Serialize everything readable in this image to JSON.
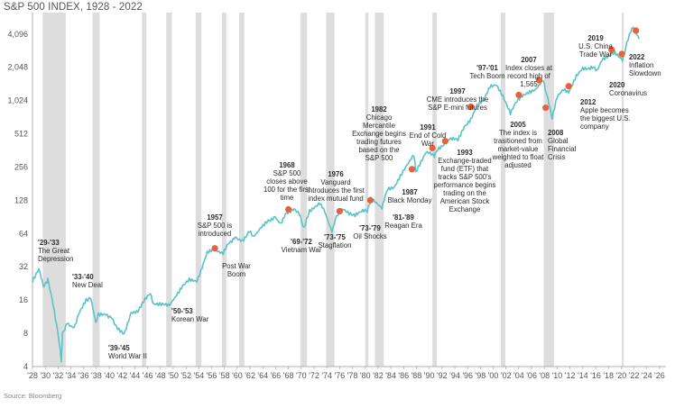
{
  "title": "S&P 500 INDEX, 1928 - 2022",
  "source": "Source: Bloomberg",
  "colors": {
    "line": "#5bc2c8",
    "marker": "#e8603c",
    "recession": "#dddddd",
    "text": "#333333",
    "axis": "#999999"
  },
  "chart_data": {
    "type": "line",
    "title": "S&P 500 INDEX, 1928 - 2022",
    "xlabel": "",
    "ylabel": "",
    "y_scale": "log2",
    "xlim": [
      1928,
      2027
    ],
    "ylim": [
      4,
      6400
    ],
    "y_ticks": [
      4,
      8,
      16,
      32,
      64,
      128,
      256,
      512,
      1024,
      2048,
      4096
    ],
    "y_tick_labels": [
      "4",
      "8",
      "16",
      "32",
      "64",
      "128",
      "256",
      "512",
      "1,024",
      "2,048",
      "4,096"
    ],
    "x_ticks": [
      1928,
      1930,
      1932,
      1934,
      1936,
      1938,
      1940,
      1942,
      1944,
      1946,
      1948,
      1950,
      1952,
      1954,
      1956,
      1958,
      1960,
      1962,
      1964,
      1966,
      1968,
      1970,
      1972,
      1974,
      1976,
      1978,
      1980,
      1982,
      1984,
      1986,
      1988,
      1990,
      1992,
      1994,
      1996,
      1998,
      2000,
      2002,
      2004,
      2006,
      2008,
      2010,
      2012,
      2014,
      2016,
      2018,
      2020,
      2022,
      2024,
      2026
    ],
    "x_tick_labels": [
      "'28",
      "'30",
      "'32",
      "'34",
      "'36",
      "'38",
      "'40",
      "'42",
      "'44",
      "'46",
      "'48",
      "'50",
      "'52",
      "'54",
      "'56",
      "'58",
      "'60",
      "'62",
      "'64",
      "'66",
      "'68",
      "'70",
      "'72",
      "'74",
      "'76",
      "'78",
      "'80",
      "'82",
      "'84",
      "'86",
      "'88",
      "'90",
      "'92",
      "'94",
      "'96",
      "'98",
      "'00",
      "'02",
      "'04",
      "'06",
      "'08",
      "'10",
      "'12",
      "'14",
      "'16",
      "'18",
      "'20",
      "'22",
      "'24",
      "'26"
    ],
    "recessions": [
      [
        1929.6,
        1933.2
      ],
      [
        1937.4,
        1938.5
      ],
      [
        1945.1,
        1945.8
      ],
      [
        1948.9,
        1949.8
      ],
      [
        1953.5,
        1954.4
      ],
      [
        1957.6,
        1958.3
      ],
      [
        1960.3,
        1961.1
      ],
      [
        1969.9,
        1970.9
      ],
      [
        1973.9,
        1975.2
      ],
      [
        1980.0,
        1980.5
      ],
      [
        1981.5,
        1982.9
      ],
      [
        1990.5,
        1991.2
      ],
      [
        2001.2,
        2001.9
      ],
      [
        2007.9,
        2009.5
      ],
      [
        2020.1,
        2020.4
      ]
    ],
    "series": [
      {
        "x": [
          1928,
          1929.0,
          1929.7,
          1930.4,
          1931.2,
          1932.0,
          1932.5,
          1932.7,
          1933.4,
          1934.5,
          1935.2,
          1936.4,
          1937.1,
          1937.9,
          1938.3,
          1939.5,
          1940.4,
          1941.3,
          1942.3,
          1943.4,
          1944.5,
          1945.6,
          1946.4,
          1946.9,
          1947.5,
          1948.5,
          1949.4,
          1950.5,
          1951.5,
          1952.5,
          1953.7,
          1954.5,
          1955.3,
          1956.5,
          1957.8,
          1958.6,
          1959.7,
          1960.8,
          1961.9,
          1962.5,
          1963.6,
          1964.8,
          1965.9,
          1966.8,
          1967.5,
          1968.9,
          1969.7,
          1970.4,
          1971.3,
          1972.9,
          1973.5,
          1974.8,
          1975.5,
          1976.5,
          1977.5,
          1978.4,
          1979.6,
          1980.3,
          1980.9,
          1982.6,
          1983.5,
          1984.5,
          1985.5,
          1987.6,
          1987.9,
          1989.5,
          1990.8,
          1991.5,
          1993.0,
          1994.5,
          1995.5,
          1996.5,
          1997.5,
          1998.5,
          1999.5,
          2000.5,
          2001.5,
          2002.7,
          2003.5,
          2004.5,
          2005.5,
          2006.5,
          2007.8,
          2008.5,
          2009.2,
          2010.0,
          2011.0,
          2011.8,
          2013.0,
          2014.0,
          2015.5,
          2016.2,
          2017.0,
          2018.0,
          2019.0,
          2020.2,
          2020.9,
          2021.5,
          2022.0,
          2022.8
        ],
        "y": [
          24,
          31,
          21,
          25,
          15,
          8,
          4.5,
          8,
          10,
          9,
          12,
          16,
          17,
          10,
          12,
          12,
          11,
          9,
          8,
          12,
          13,
          16,
          18,
          15,
          15,
          15,
          14,
          18,
          22,
          25,
          24,
          32,
          44,
          47,
          42,
          52,
          60,
          55,
          68,
          60,
          72,
          84,
          90,
          80,
          95,
          105,
          95,
          72,
          100,
          118,
          105,
          68,
          90,
          105,
          95,
          96,
          105,
          100,
          130,
          110,
          160,
          165,
          210,
          330,
          230,
          350,
          320,
          380,
          450,
          460,
          600,
          700,
          950,
          1050,
          1400,
          1450,
          1150,
          800,
          1000,
          1150,
          1230,
          1300,
          1550,
          1100,
          700,
          1100,
          1280,
          1200,
          1700,
          2000,
          2050,
          1900,
          2400,
          2600,
          2800,
          2400,
          3400,
          4300,
          4800,
          3700
        ]
      }
    ],
    "events": [
      {
        "x": 1956.5,
        "y": 47
      },
      {
        "x": 1968.0,
        "y": 106
      },
      {
        "x": 1976.0,
        "y": 102
      },
      {
        "x": 1980.8,
        "y": 128
      },
      {
        "x": 1987.3,
        "y": 245
      },
      {
        "x": 1990.5,
        "y": 380
      },
      {
        "x": 1992.5,
        "y": 440
      },
      {
        "x": 1996.5,
        "y": 900
      },
      {
        "x": 2004.0,
        "y": 1150
      },
      {
        "x": 2007.2,
        "y": 1565
      },
      {
        "x": 2008.2,
        "y": 880
      },
      {
        "x": 2011.8,
        "y": 1380
      },
      {
        "x": 2018.5,
        "y": 2950
      },
      {
        "x": 2020.1,
        "y": 2700
      },
      {
        "x": 2022.3,
        "y": 4400
      }
    ]
  },
  "annotations": [
    {
      "x": 42,
      "y": 272,
      "anchor": "start",
      "lines": [
        {
          "t": "'29-'33",
          "b": true
        },
        {
          "t": "The Great",
          "b": false
        },
        {
          "t": "Depression",
          "b": false
        }
      ]
    },
    {
      "x": 80,
      "y": 310,
      "anchor": "start",
      "lines": [
        {
          "t": "'33-'40",
          "b": true
        },
        {
          "t": "New Deal",
          "b": false
        }
      ]
    },
    {
      "x": 120,
      "y": 389,
      "anchor": "start",
      "lines": [
        {
          "t": "'39-'45",
          "b": true
        },
        {
          "t": "World War II",
          "b": false
        }
      ]
    },
    {
      "x": 190,
      "y": 348,
      "anchor": "start",
      "lines": [
        {
          "t": "'50-'53",
          "b": true
        },
        {
          "t": "Korean War",
          "b": false
        }
      ]
    },
    {
      "x": 238,
      "y": 244,
      "anchor": "middle",
      "lines": [
        {
          "t": "1957",
          "b": true
        },
        {
          "t": "S&P 500 is",
          "b": false
        },
        {
          "t": "introduced",
          "b": false
        }
      ]
    },
    {
      "x": 262,
      "y": 298,
      "anchor": "middle",
      "lines": [
        {
          "t": "Post War",
          "b": false
        },
        {
          "t": "Boom",
          "b": false
        }
      ]
    },
    {
      "x": 318,
      "y": 186,
      "anchor": "middle",
      "lines": [
        {
          "t": "1968",
          "b": true
        },
        {
          "t": "S&P 500",
          "b": false
        },
        {
          "t": "closes above",
          "b": false
        },
        {
          "t": "100 for the first",
          "b": false
        },
        {
          "t": "time",
          "b": false
        }
      ]
    },
    {
      "x": 334,
      "y": 271,
      "anchor": "middle",
      "lines": [
        {
          "t": "'69-'72",
          "b": true
        },
        {
          "t": "Vietnam War",
          "b": false
        }
      ]
    },
    {
      "x": 372,
      "y": 196,
      "anchor": "middle",
      "lines": [
        {
          "t": "1976",
          "b": true
        },
        {
          "t": "Vanguard",
          "b": false
        },
        {
          "t": "introduces the first",
          "b": false
        },
        {
          "t": "index mutual fund",
          "b": false
        }
      ]
    },
    {
      "x": 371,
      "y": 266,
      "anchor": "middle",
      "lines": [
        {
          "t": "'73-'75",
          "b": true
        },
        {
          "t": "Stagflation",
          "b": false
        }
      ]
    },
    {
      "x": 420,
      "y": 124,
      "anchor": "middle",
      "lines": [
        {
          "t": "1982",
          "b": true
        },
        {
          "t": "Chicago",
          "b": false
        },
        {
          "t": "Mercantile",
          "b": false
        },
        {
          "t": "Exchange begins",
          "b": false
        },
        {
          "t": "trading futures",
          "b": false
        },
        {
          "t": "based on the",
          "b": false
        },
        {
          "t": "S&P 500",
          "b": false
        }
      ]
    },
    {
      "x": 410,
      "y": 256,
      "anchor": "middle",
      "lines": [
        {
          "t": "'73-'79",
          "b": true
        },
        {
          "t": "Oil Shocks",
          "b": false
        }
      ]
    },
    {
      "x": 447,
      "y": 244,
      "anchor": "middle",
      "lines": [
        {
          "t": "'81-'89",
          "b": true
        },
        {
          "t": "Reagan Era",
          "b": false
        }
      ]
    },
    {
      "x": 454,
      "y": 216,
      "anchor": "middle",
      "lines": [
        {
          "t": "1987",
          "b": true
        },
        {
          "t": "Black Monday",
          "b": false
        }
      ]
    },
    {
      "x": 474,
      "y": 144,
      "anchor": "middle",
      "lines": [
        {
          "t": "1991",
          "b": true
        },
        {
          "t": "End of Cold",
          "b": false
        },
        {
          "t": "War",
          "b": false
        }
      ]
    },
    {
      "x": 507,
      "y": 104,
      "anchor": "middle",
      "lines": [
        {
          "t": "1997",
          "b": true
        },
        {
          "t": "CME introduces the",
          "b": false
        },
        {
          "t": "S&P E-mini futures",
          "b": false
        }
      ]
    },
    {
      "x": 515,
      "y": 172,
      "anchor": "middle",
      "lines": [
        {
          "t": "1993",
          "b": true
        },
        {
          "t": "Exchange-traded",
          "b": false
        },
        {
          "t": "fund  (ETF) that",
          "b": false
        },
        {
          "t": "tracks S&P 500's",
          "b": false
        },
        {
          "t": "performance begins",
          "b": false
        },
        {
          "t": "trading on the",
          "b": false
        },
        {
          "t": "American Stock",
          "b": false
        },
        {
          "t": "Exchange",
          "b": false
        }
      ]
    },
    {
      "x": 540,
      "y": 78,
      "anchor": "middle",
      "lines": [
        {
          "t": "'97-'01",
          "b": true
        },
        {
          "t": "Tech Boom",
          "b": false
        }
      ]
    },
    {
      "x": 574,
      "y": 141,
      "anchor": "middle",
      "lines": [
        {
          "t": "2005",
          "b": true
        },
        {
          "t": "The index is",
          "b": false
        },
        {
          "t": "trasitioned from",
          "b": false
        },
        {
          "t": "market-value",
          "b": false
        },
        {
          "t": "weighted to float",
          "b": false
        },
        {
          "t": "adjusted",
          "b": false
        }
      ]
    },
    {
      "x": 586,
      "y": 69,
      "anchor": "middle",
      "lines": [
        {
          "t": "2007",
          "b": true
        },
        {
          "t": "Index closes at",
          "b": false
        },
        {
          "t": "record high of",
          "b": false
        },
        {
          "t": "1,565",
          "b": false
        }
      ]
    },
    {
      "x": 607,
      "y": 150,
      "anchor": "start",
      "lines": [
        {
          "t": "2008",
          "b": true
        },
        {
          "t": "Global",
          "b": false
        },
        {
          "t": "Financial",
          "b": false
        },
        {
          "t": "Crisis",
          "b": false
        }
      ]
    },
    {
      "x": 643,
      "y": 116,
      "anchor": "start",
      "lines": [
        {
          "t": "2012",
          "b": true
        },
        {
          "t": "Apple becomes",
          "b": false
        },
        {
          "t": "the biggest U.S.",
          "b": false
        },
        {
          "t": "company",
          "b": false
        }
      ]
    },
    {
      "x": 660,
      "y": 45,
      "anchor": "middle",
      "lines": [
        {
          "t": "2019",
          "b": true
        },
        {
          "t": "U.S. China",
          "b": false
        },
        {
          "t": "Trade War",
          "b": false
        }
      ]
    },
    {
      "x": 675,
      "y": 97,
      "anchor": "start",
      "lines": [
        {
          "t": "2020",
          "b": true
        },
        {
          "t": "Coronavirus",
          "b": false
        }
      ]
    },
    {
      "x": 697,
      "y": 66,
      "anchor": "start",
      "lines": [
        {
          "t": "2022",
          "b": true
        },
        {
          "t": "Inflation",
          "b": false
        },
        {
          "t": "Slowdown",
          "b": false
        }
      ]
    }
  ]
}
